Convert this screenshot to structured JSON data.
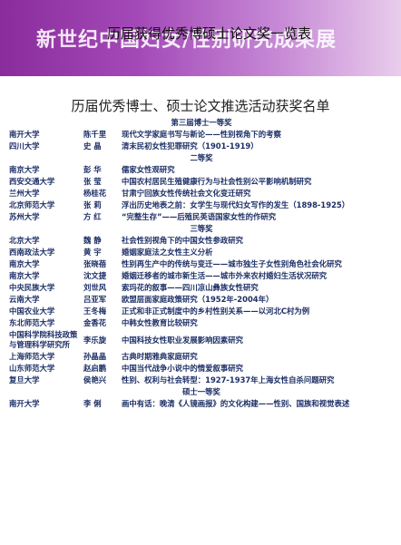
{
  "banner": {
    "background_title": "新世纪中国妇女/性别研究成果展",
    "title": "历届获得优秀博硕士论文奖一览表"
  },
  "doc_title": "历届优秀博士、硕士论文推选活动获奖名单",
  "rows": [
    {
      "h": "第三届博士一等奖"
    },
    {
      "u": "南开大学",
      "n": "陈千里",
      "t": "现代文学家庭书写与新论——性别视角下的考察"
    },
    {
      "u": "四川大学",
      "n": "史 晶",
      "t": "清末民初女性犯罪研究（1901-1919）"
    },
    {
      "h": "二等奖"
    },
    {
      "u": "南京大学",
      "n": "彭 华",
      "t": "儒家女性观研究"
    },
    {
      "u": "西安交通大学",
      "n": "张 莹",
      "t": "中国农村居民生殖健康行为与社会性别公平影响机制研究"
    },
    {
      "u": "兰州大学",
      "n": "杨桂花",
      "t": "甘肃宁回族女性传统社会文化变迁研究"
    },
    {
      "u": "北京师范大学",
      "n": "张 莉",
      "t": "浮出历史地表之前：女学生与现代妇女写作的发生（1898-1925）"
    },
    {
      "u": "苏州大学",
      "n": "方 红",
      "t": "“完整生存”——后殖民英语国家女性的作研究"
    },
    {
      "h": "三等奖"
    },
    {
      "u": "北京大学",
      "n": "魏 静",
      "t": "社会性别视角下的中国女性参政研究"
    },
    {
      "u": "西南政法大学",
      "n": "黄 宇",
      "t": "婚姻家庭法之女性主义分析"
    },
    {
      "u": "南京大学",
      "n": "张晓蓓",
      "t": "性别再生产中的传统与变迁——城市独生子女性别角色社会化研究"
    },
    {
      "u": "南京大学",
      "n": "沈文捷",
      "t": "婚姻迁移者的城市新生活——城市外来农村婚妇生活状况研究"
    },
    {
      "u": "中央民族大学",
      "n": "刘世风",
      "t": "索玛花的叙事——四川凉山彝族女性研究"
    },
    {
      "u": "云南大学",
      "n": "吕亚军",
      "t": "欧盟层面家庭政策研究（1952年-2004年）"
    },
    {
      "u": "中国农业大学",
      "n": "王冬梅",
      "t": "正式和非正式制度中的乡村性别关系——以河北C村为例"
    },
    {
      "u": "东北师范大学",
      "n": "金香花",
      "t": "中韩女性教育比较研究"
    },
    {
      "u": "中国科学院科技政策与管理科学研究所",
      "n": "李乐旋",
      "t": "中国科技女性职业发展影响因素研究"
    },
    {
      "u": "上海师范大学",
      "n": "孙晶晶",
      "t": "古典时期雅典家庭研究"
    },
    {
      "u": "山东师范大学",
      "n": "赵启鹏",
      "t": "中国当代战争小说中的情爱叙事研究"
    },
    {
      "u": "复旦大学",
      "n": "侯艳兴",
      "t": "性别、权利与社会转型：1927-1937年上海女性自杀问题研究"
    },
    {
      "h": "硕士一等奖"
    },
    {
      "u": "南开大学",
      "n": "李 俐",
      "t": "画中有话：晚清《人镜画报》的文化构建——性别、国族和视觉表述"
    }
  ]
}
